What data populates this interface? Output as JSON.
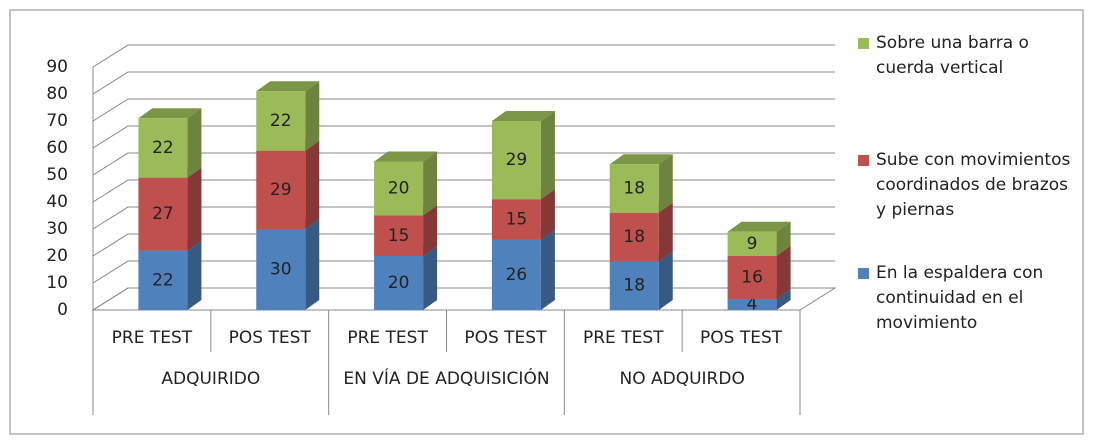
{
  "chart_data": {
    "type": "bar3d_stacked",
    "categories": [
      "PRE TEST",
      "POS TEST",
      "PRE TEST",
      "POS TEST",
      "PRE TEST",
      "POS TEST"
    ],
    "groups": [
      "ADQUIRIDO",
      "EN VÍA DE ADQUISICIÓN",
      "NO ADQUIRDO"
    ],
    "series": [
      {
        "name": "En la espaldera con continuidad en el movimiento",
        "color": "#4f81bd",
        "values": [
          22,
          30,
          20,
          26,
          18,
          4
        ]
      },
      {
        "name": "Sube con movimientos coordinados de brazos y piernas",
        "color": "#c0504d",
        "values": [
          27,
          29,
          15,
          15,
          18,
          16
        ]
      },
      {
        "name": "Sobre una barra o cuerda vertical",
        "color": "#9bbb59",
        "values": [
          22,
          22,
          20,
          29,
          18,
          9
        ]
      }
    ],
    "ylim": [
      0,
      90
    ],
    "yticks": [
      0,
      10,
      20,
      30,
      40,
      50,
      60,
      70,
      80,
      90
    ],
    "grid": true,
    "legend": "right"
  }
}
